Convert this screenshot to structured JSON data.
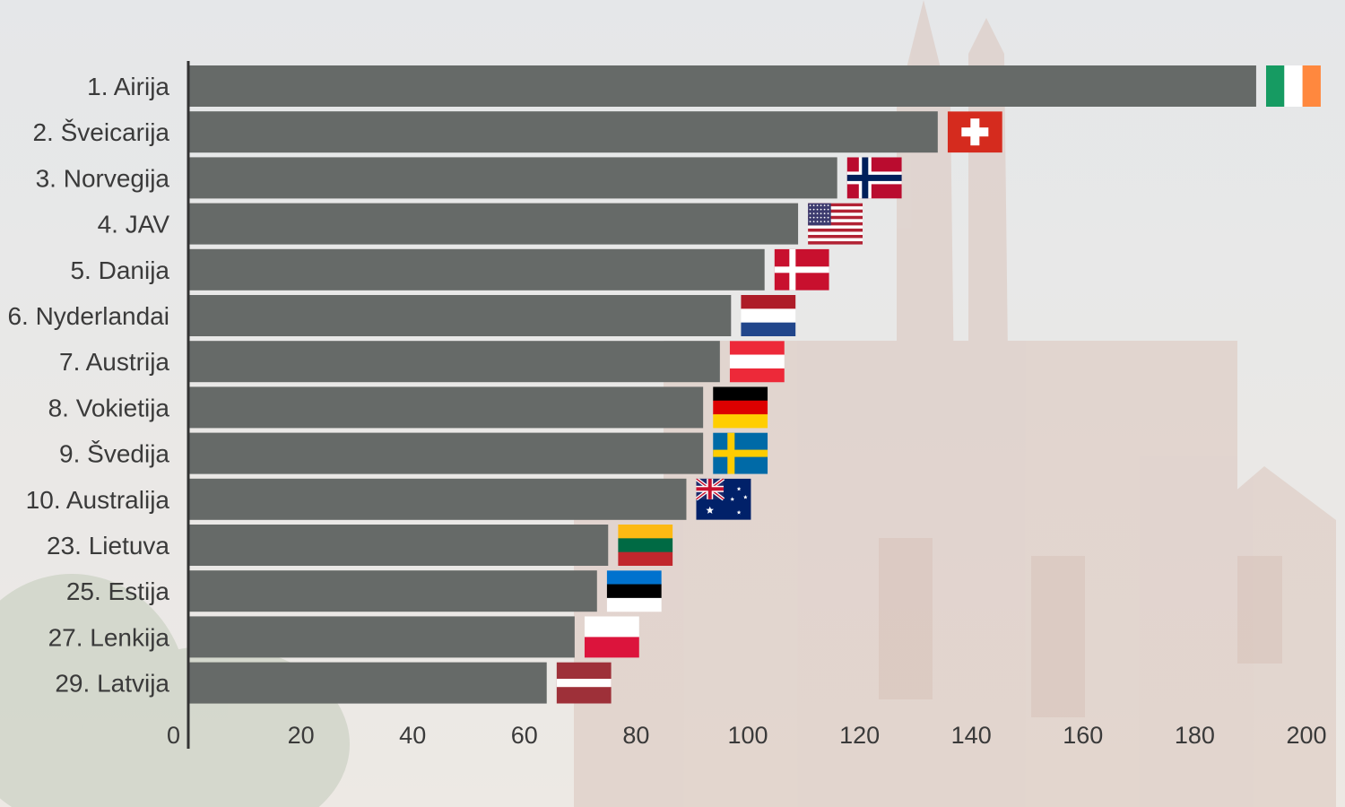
{
  "chart_data": {
    "type": "bar",
    "orientation": "horizontal",
    "categories": [
      "1. Airija",
      "2. Šveicarija",
      "3. Norvegija",
      "4. JAV",
      "5. Danija",
      "6. Nyderlandai",
      "7. Austrija",
      "8. Vokietija",
      "9. Švedija",
      "10. Australija",
      "23. Lietuva",
      "25. Estija",
      "27. Lenkija",
      "29. Latvija"
    ],
    "values": [
      191,
      134,
      116,
      109,
      103,
      97,
      95,
      92,
      92,
      89,
      75,
      73,
      69,
      64
    ],
    "flags": [
      "ireland-flag-icon",
      "switzerland-flag-icon",
      "norway-flag-icon",
      "usa-flag-icon",
      "denmark-flag-icon",
      "netherlands-flag-icon",
      "austria-flag-icon",
      "germany-flag-icon",
      "sweden-flag-icon",
      "australia-flag-icon",
      "lithuania-flag-icon",
      "estonia-flag-icon",
      "poland-flag-icon",
      "latvia-flag-icon"
    ],
    "x_ticks": [
      "0",
      "20",
      "40",
      "60",
      "80",
      "100",
      "120",
      "140",
      "160",
      "180",
      "200"
    ],
    "xlim": [
      0,
      200
    ],
    "grid": false,
    "bar_color": "#666a68",
    "title": "",
    "xlabel": "",
    "ylabel": ""
  }
}
